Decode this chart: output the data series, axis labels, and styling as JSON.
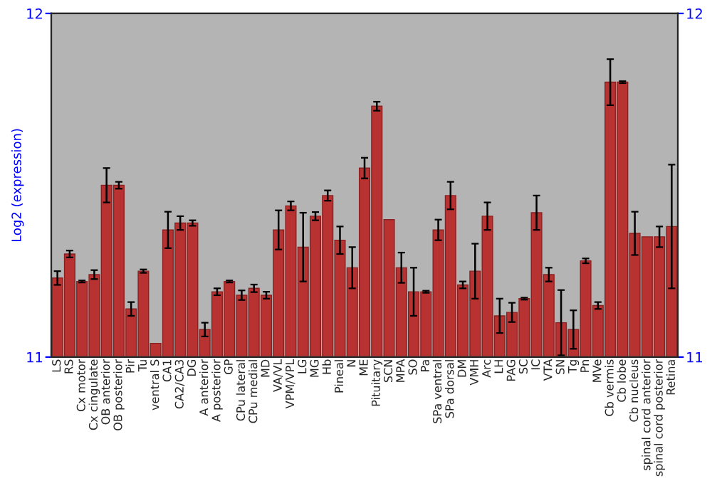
{
  "chart_data": {
    "type": "bar",
    "ylabel": "Log2 (expression)",
    "categories": [
      "LS",
      "RS",
      "Cx motor",
      "Cx cingulate",
      "OB anterior",
      "OB posterior",
      "Pir",
      "Tu",
      "ventral S",
      "CA1",
      "CA2/CA3",
      "DG",
      "A anterior",
      "A posterior",
      "GP",
      "CPu lateral",
      "CPu medial",
      "MD",
      "VA/VL",
      "VPM/VPL",
      "LG",
      "MG",
      "Hb",
      "Pineal",
      "N",
      "ME",
      "Pituitary",
      "SCN",
      "MPA",
      "SO",
      "Pa",
      "SPa ventral",
      "SPa dorsal",
      "DM",
      "VMH",
      "Arc",
      "LH",
      "PAG",
      "SC",
      "IC",
      "VTA",
      "SN",
      "Tg",
      "Pn",
      "MVe",
      "Cb vermis",
      "Cb lobe",
      "Cb nucleus",
      "spinal cord anterior",
      "spinal cord posterior",
      "Retina"
    ],
    "values": [
      11.23,
      11.3,
      11.22,
      11.24,
      11.5,
      11.5,
      11.14,
      11.25,
      11.04,
      11.37,
      11.39,
      11.39,
      11.08,
      11.19,
      11.22,
      11.18,
      11.2,
      11.18,
      11.37,
      11.44,
      11.32,
      11.41,
      11.47,
      11.34,
      11.26,
      11.55,
      11.73,
      11.4,
      11.26,
      11.19,
      11.19,
      11.37,
      11.47,
      11.21,
      11.25,
      11.41,
      11.12,
      11.13,
      11.17,
      11.42,
      11.24,
      11.1,
      11.08,
      11.28,
      11.15,
      11.8,
      11.8,
      11.36,
      11.35,
      11.35,
      11.38
    ],
    "errors": [
      0.02,
      0.01,
      0.003,
      0.013,
      0.05,
      0.01,
      0.02,
      0.005,
      null,
      0.053,
      0.02,
      0.008,
      0.02,
      0.01,
      0.003,
      0.014,
      0.011,
      0.01,
      0.057,
      0.013,
      0.1,
      0.012,
      0.015,
      0.04,
      0.06,
      0.03,
      0.013,
      null,
      0.044,
      0.07,
      0.003,
      0.03,
      0.04,
      0.01,
      0.08,
      0.04,
      0.05,
      0.028,
      0.003,
      0.05,
      0.02,
      0.095,
      0.056,
      0.007,
      0.01,
      0.067,
      0.003,
      0.063,
      null,
      0.03,
      0.18
    ],
    "color": "#b83232",
    "ylim": [
      11,
      12
    ],
    "yticks": [
      11,
      12
    ],
    "y2lim": [
      11,
      12
    ],
    "y2ticks": [
      11,
      12
    ]
  }
}
